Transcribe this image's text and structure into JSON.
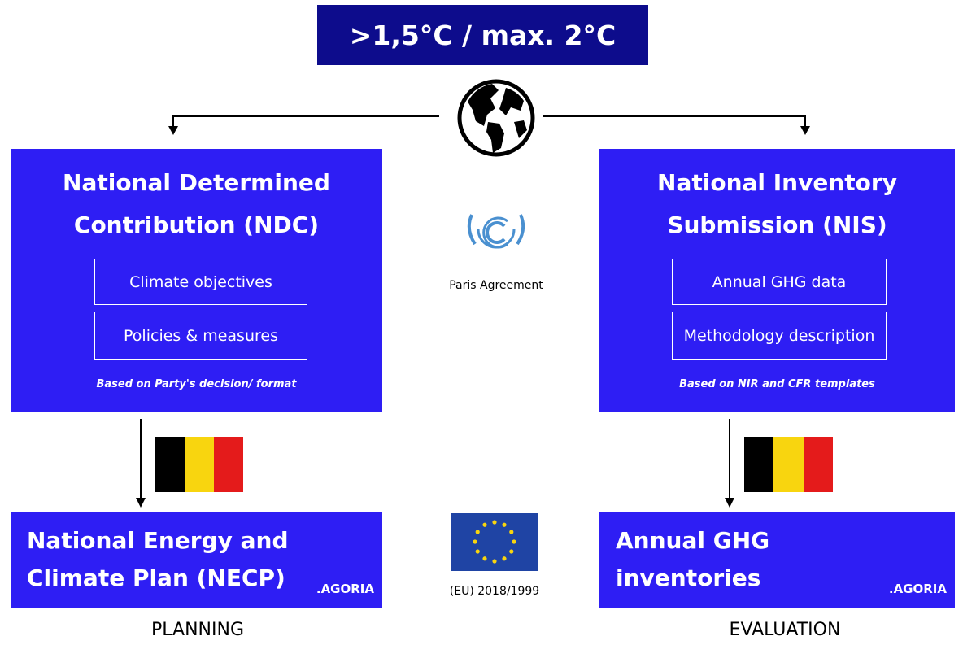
{
  "header": {
    "title": ">1,5°C / max. 2°C"
  },
  "center": {
    "agreement_label": "Paris Agreement",
    "regulation_label": "(EU) 2018/1999"
  },
  "left": {
    "title": "National Determined Contribution (NDC)",
    "items": [
      "Climate objectives",
      "Policies & measures"
    ],
    "note": "Based on Party's decision/ format",
    "result": {
      "title": "National Energy and Climate Plan (NECP)",
      "brand": ".AGORIA"
    },
    "phase": "PLANNING"
  },
  "right": {
    "title": "National Inventory Submission (NIS)",
    "items": [
      "Annual GHG data",
      "Methodology description"
    ],
    "note": "Based on NIR and CFR templates",
    "result": {
      "title": "Annual GHG inventories",
      "brand": ".AGORIA"
    },
    "phase": "EVALUATION"
  }
}
